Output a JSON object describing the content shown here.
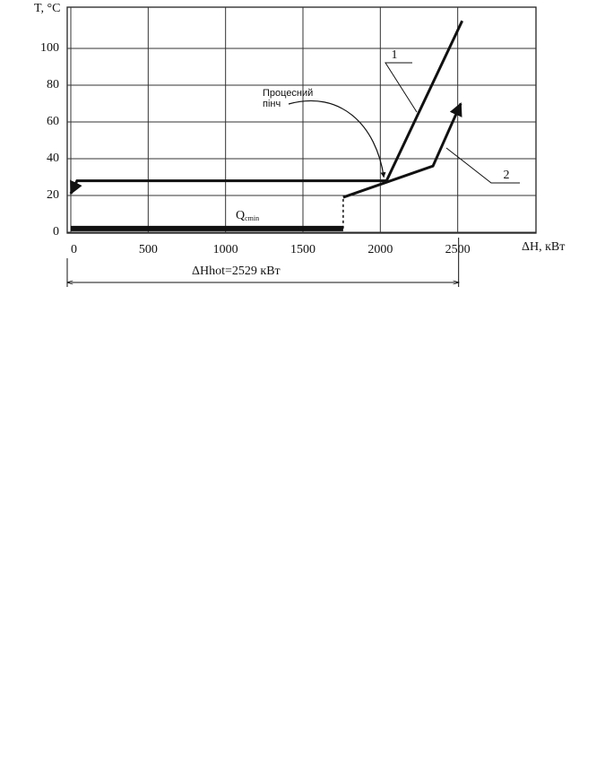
{
  "chart_data": {
    "type": "line",
    "ylabel": "T, °C",
    "xlabel": "ΔH, кВт",
    "xlim": [
      0,
      3000
    ],
    "ylim": [
      0,
      120
    ],
    "xticks": [
      0,
      500,
      1000,
      1500,
      2000,
      2500
    ],
    "yticks": [
      0,
      20,
      40,
      60,
      80,
      100
    ],
    "grid": true,
    "series": [
      {
        "name": "1",
        "color": "#111111",
        "x": [
          0,
          40,
          2040,
          2529
        ],
        "values": [
          21,
          28,
          28,
          115
        ]
      },
      {
        "name": "2",
        "color": "#111111",
        "x": [
          1760,
          2340,
          2520
        ],
        "values": [
          19,
          36,
          70
        ]
      }
    ],
    "pinch": {
      "lines": [
        "Процесний",
        "пінч"
      ],
      "x": 2040,
      "y": 28
    },
    "qcmin": {
      "label": "Q",
      "sub": "cmin",
      "x": [
        0,
        1760
      ],
      "y": 2,
      "top": 19
    },
    "dimension": {
      "label": "ΔHhot=2529 кВт",
      "from": 0,
      "to": 2529
    }
  }
}
